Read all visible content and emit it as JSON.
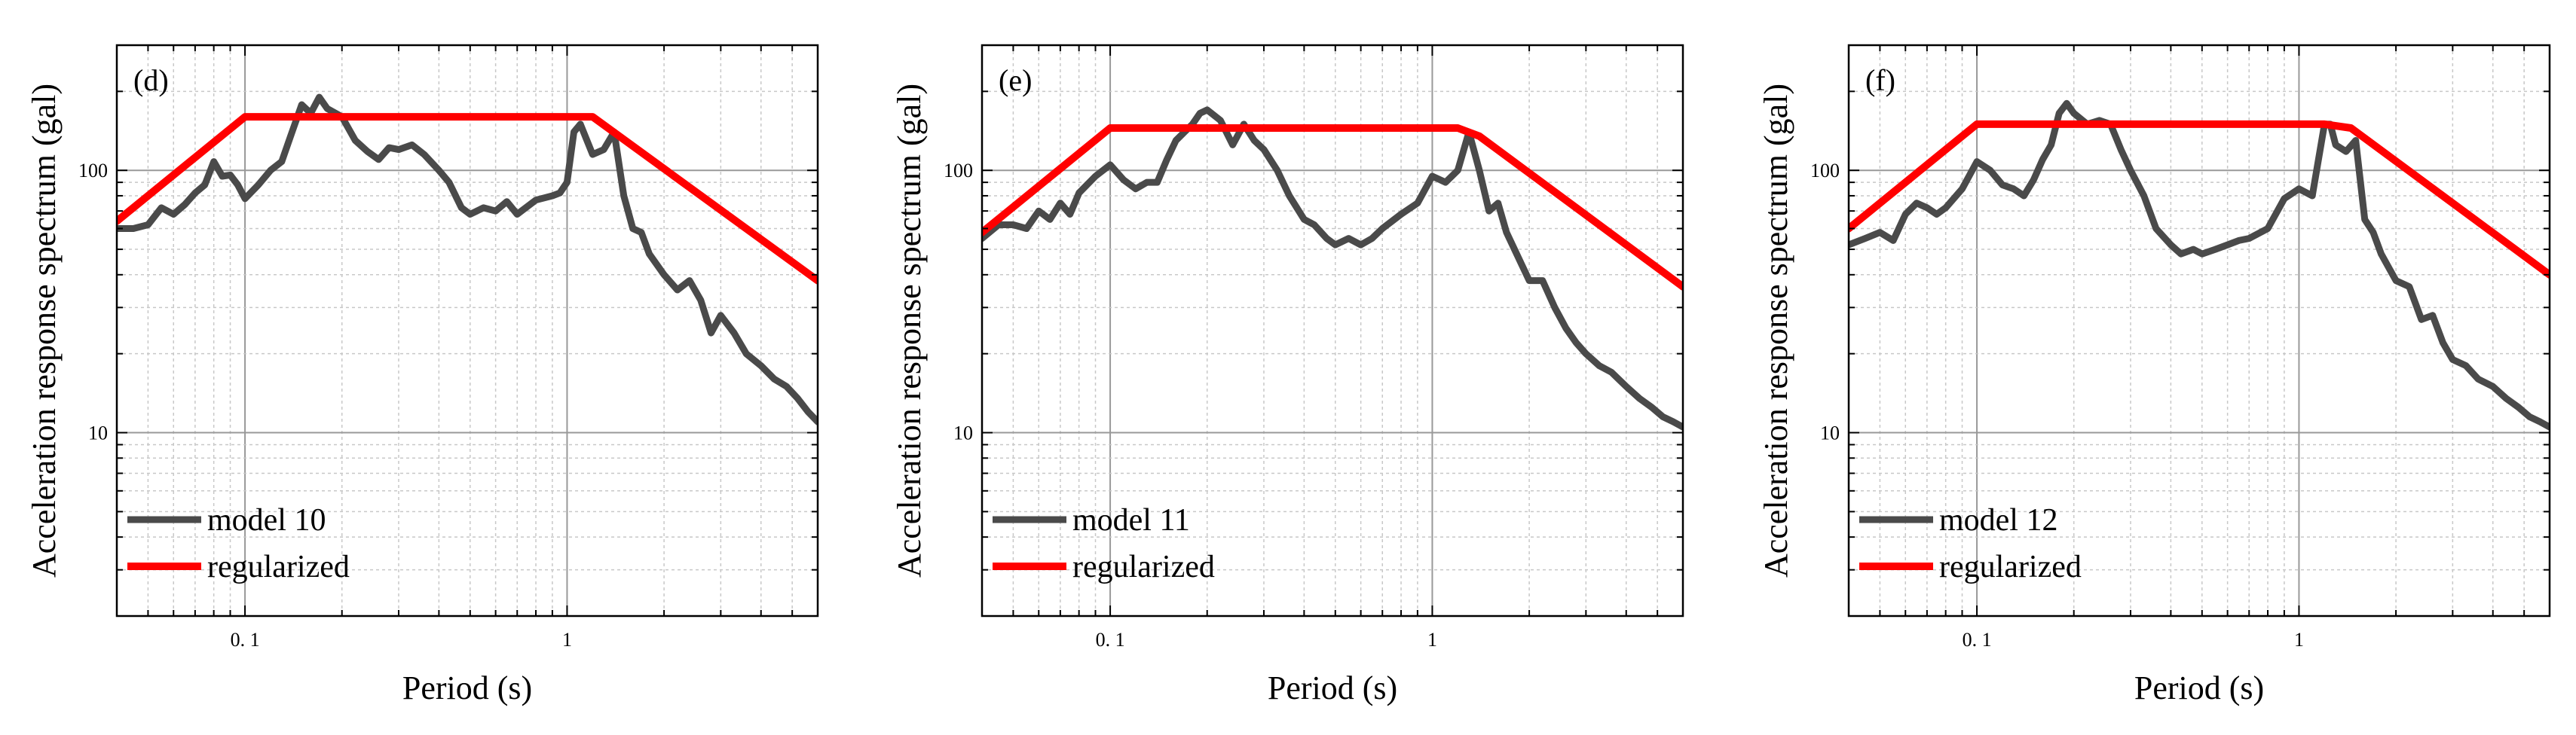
{
  "figure": {
    "panels": 3,
    "colors": {
      "model": "#4a4a4a",
      "regularized": "#ff0000",
      "grid_major": "#999999",
      "grid_minor": "#c8c8c8",
      "frame": "#000000"
    }
  },
  "chart_data": [
    {
      "type": "line",
      "panel_label": "(d)",
      "xlabel": "Period (s)",
      "ylabel": "Acceleration response spectrum (gal)",
      "xscale": "log",
      "yscale": "log",
      "xlim": [
        0.04,
        6.0
      ],
      "ylim": [
        2.0,
        300
      ],
      "xticks": [
        {
          "value": 0.1,
          "label": "0. 1"
        },
        {
          "value": 1,
          "label": "1"
        }
      ],
      "yticks": [
        {
          "value": 10,
          "label": "10"
        },
        {
          "value": 100,
          "label": "100"
        }
      ],
      "grid": true,
      "legend": {
        "position": "bottom-left",
        "entries": [
          "model 10",
          "regularized"
        ]
      },
      "series": [
        {
          "name": "model 10",
          "x": [
            0.04,
            0.045,
            0.05,
            0.055,
            0.06,
            0.065,
            0.07,
            0.075,
            0.08,
            0.085,
            0.09,
            0.095,
            0.1,
            0.11,
            0.12,
            0.13,
            0.14,
            0.15,
            0.16,
            0.17,
            0.18,
            0.2,
            0.22,
            0.24,
            0.26,
            0.28,
            0.3,
            0.33,
            0.36,
            0.4,
            0.43,
            0.47,
            0.5,
            0.55,
            0.6,
            0.65,
            0.7,
            0.8,
            0.9,
            0.95,
            1.0,
            1.05,
            1.1,
            1.2,
            1.3,
            1.4,
            1.5,
            1.6,
            1.7,
            1.8,
            2.0,
            2.2,
            2.4,
            2.6,
            2.8,
            3.0,
            3.3,
            3.6,
            4.0,
            4.4,
            4.8,
            5.2,
            5.6,
            6.0
          ],
          "y": [
            60,
            60,
            62,
            72,
            68,
            74,
            82,
            88,
            108,
            95,
            96,
            88,
            78,
            88,
            100,
            108,
            140,
            178,
            165,
            190,
            172,
            160,
            130,
            118,
            110,
            122,
            120,
            125,
            115,
            100,
            90,
            72,
            68,
            72,
            70,
            76,
            68,
            77,
            80,
            82,
            90,
            140,
            150,
            115,
            120,
            140,
            80,
            60,
            58,
            48,
            40,
            35,
            38,
            32,
            24,
            28,
            24,
            20,
            18,
            16,
            15,
            13.5,
            12,
            11
          ]
        },
        {
          "name": "regularized",
          "x": [
            0.04,
            0.1,
            1.2,
            6.0
          ],
          "y": [
            64,
            160,
            160,
            38
          ]
        }
      ]
    },
    {
      "type": "line",
      "panel_label": "(e)",
      "xlabel": "Period (s)",
      "ylabel": "Acceleration response spectrum (gal)",
      "xscale": "log",
      "yscale": "log",
      "xlim": [
        0.04,
        6.0
      ],
      "ylim": [
        2.0,
        300
      ],
      "xticks": [
        {
          "value": 0.1,
          "label": "0. 1"
        },
        {
          "value": 1,
          "label": "1"
        }
      ],
      "yticks": [
        {
          "value": 10,
          "label": "10"
        },
        {
          "value": 100,
          "label": "100"
        }
      ],
      "grid": true,
      "legend": {
        "position": "bottom-left",
        "entries": [
          "model 11",
          "regularized"
        ]
      },
      "series": [
        {
          "name": "model 11",
          "x": [
            0.04,
            0.045,
            0.05,
            0.055,
            0.06,
            0.065,
            0.07,
            0.075,
            0.08,
            0.09,
            0.1,
            0.11,
            0.12,
            0.13,
            0.14,
            0.15,
            0.16,
            0.17,
            0.18,
            0.19,
            0.2,
            0.22,
            0.24,
            0.26,
            0.28,
            0.3,
            0.33,
            0.36,
            0.4,
            0.43,
            0.47,
            0.5,
            0.55,
            0.6,
            0.65,
            0.7,
            0.8,
            0.9,
            1.0,
            1.1,
            1.2,
            1.3,
            1.4,
            1.5,
            1.6,
            1.7,
            1.8,
            2.0,
            2.2,
            2.4,
            2.6,
            2.8,
            3.0,
            3.3,
            3.6,
            4.0,
            4.4,
            4.8,
            5.2,
            5.6,
            6.0
          ],
          "y": [
            55,
            62,
            62,
            60,
            70,
            65,
            75,
            68,
            82,
            95,
            105,
            92,
            85,
            90,
            90,
            110,
            130,
            140,
            150,
            165,
            170,
            155,
            125,
            150,
            130,
            120,
            100,
            80,
            65,
            62,
            55,
            52,
            55,
            52,
            55,
            60,
            68,
            75,
            95,
            90,
            100,
            140,
            100,
            70,
            75,
            58,
            50,
            38,
            38,
            30,
            25,
            22,
            20,
            18,
            17,
            15,
            13.5,
            12.5,
            11.5,
            11,
            10.5
          ]
        },
        {
          "name": "regularized",
          "x": [
            0.04,
            0.1,
            1.2,
            1.4,
            6.0
          ],
          "y": [
            58,
            145,
            145,
            135,
            36
          ]
        }
      ]
    },
    {
      "type": "line",
      "panel_label": "(f)",
      "xlabel": "Period (s)",
      "ylabel": "Acceleration response spectrum (gal)",
      "xscale": "log",
      "yscale": "log",
      "xlim": [
        0.04,
        6.0
      ],
      "ylim": [
        2.0,
        300
      ],
      "xticks": [
        {
          "value": 0.1,
          "label": "0. 1"
        },
        {
          "value": 1,
          "label": "1"
        }
      ],
      "yticks": [
        {
          "value": 10,
          "label": "10"
        },
        {
          "value": 100,
          "label": "100"
        }
      ],
      "grid": true,
      "legend": {
        "position": "bottom-left",
        "entries": [
          "model 12",
          "regularized"
        ]
      },
      "series": [
        {
          "name": "model 12",
          "x": [
            0.04,
            0.045,
            0.05,
            0.055,
            0.06,
            0.065,
            0.07,
            0.075,
            0.08,
            0.09,
            0.1,
            0.11,
            0.12,
            0.13,
            0.14,
            0.15,
            0.16,
            0.17,
            0.18,
            0.19,
            0.2,
            0.22,
            0.24,
            0.26,
            0.28,
            0.3,
            0.33,
            0.36,
            0.4,
            0.43,
            0.47,
            0.5,
            0.55,
            0.6,
            0.65,
            0.7,
            0.8,
            0.9,
            1.0,
            1.1,
            1.2,
            1.25,
            1.3,
            1.4,
            1.5,
            1.6,
            1.7,
            1.8,
            2.0,
            2.2,
            2.4,
            2.6,
            2.8,
            3.0,
            3.3,
            3.6,
            4.0,
            4.4,
            4.8,
            5.2,
            5.6,
            6.0
          ],
          "y": [
            52,
            55,
            58,
            54,
            68,
            75,
            72,
            68,
            72,
            85,
            108,
            100,
            88,
            85,
            80,
            92,
            110,
            125,
            165,
            180,
            165,
            150,
            155,
            150,
            120,
            100,
            80,
            60,
            52,
            48,
            50,
            48,
            50,
            52,
            54,
            55,
            60,
            78,
            85,
            80,
            150,
            150,
            125,
            118,
            130,
            65,
            58,
            48,
            38,
            36,
            27,
            28,
            22,
            19,
            18,
            16,
            15,
            13.5,
            12.5,
            11.5,
            11,
            10.5
          ]
        },
        {
          "name": "regularized",
          "x": [
            0.04,
            0.1,
            1.2,
            1.45,
            6.0
          ],
          "y": [
            60,
            150,
            150,
            145,
            40
          ]
        }
      ]
    }
  ]
}
